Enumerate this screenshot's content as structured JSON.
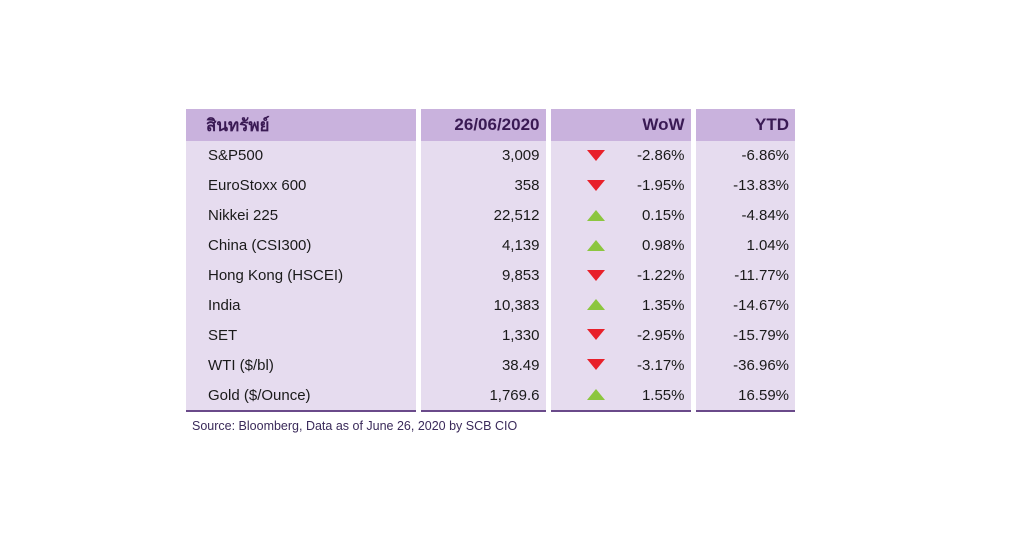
{
  "table": {
    "headers": [
      "สินทรัพย์",
      "26/06/2020",
      "WoW",
      "YTD"
    ],
    "rows": [
      {
        "asset": "S&P500",
        "value": "3,009",
        "direction": "down",
        "wow": "-2.86%",
        "ytd": "-6.86%"
      },
      {
        "asset": "EuroStoxx 600",
        "value": "358",
        "direction": "down",
        "wow": "-1.95%",
        "ytd": "-13.83%"
      },
      {
        "asset": "Nikkei 225",
        "value": "22,512",
        "direction": "up",
        "wow": "0.15%",
        "ytd": "-4.84%"
      },
      {
        "asset": "China (CSI300)",
        "value": "4,139",
        "direction": "up",
        "wow": "0.98%",
        "ytd": "1.04%"
      },
      {
        "asset": "Hong Kong (HSCEI)",
        "value": "9,853",
        "direction": "down",
        "wow": "-1.22%",
        "ytd": "-11.77%"
      },
      {
        "asset": "India",
        "value": "10,383",
        "direction": "up",
        "wow": "1.35%",
        "ytd": "-14.67%"
      },
      {
        "asset": "SET",
        "value": "1,330",
        "direction": "down",
        "wow": "-2.95%",
        "ytd": "-15.79%"
      },
      {
        "asset": "WTI ($/bl)",
        "value": "38.49",
        "direction": "down",
        "wow": "-3.17%",
        "ytd": "-36.96%"
      },
      {
        "asset": "Gold ($/Ounce)",
        "value": "1,769.6",
        "direction": "up",
        "wow": "1.55%",
        "ytd": "16.59%"
      }
    ],
    "colors": {
      "down": "#e8202a",
      "up": "#8cc63f",
      "header_bg": "#c9b2dd",
      "body_bg": "#e6dcef"
    }
  },
  "source": "Source: Bloomberg, Data as of June 26, 2020 by SCB CIO"
}
